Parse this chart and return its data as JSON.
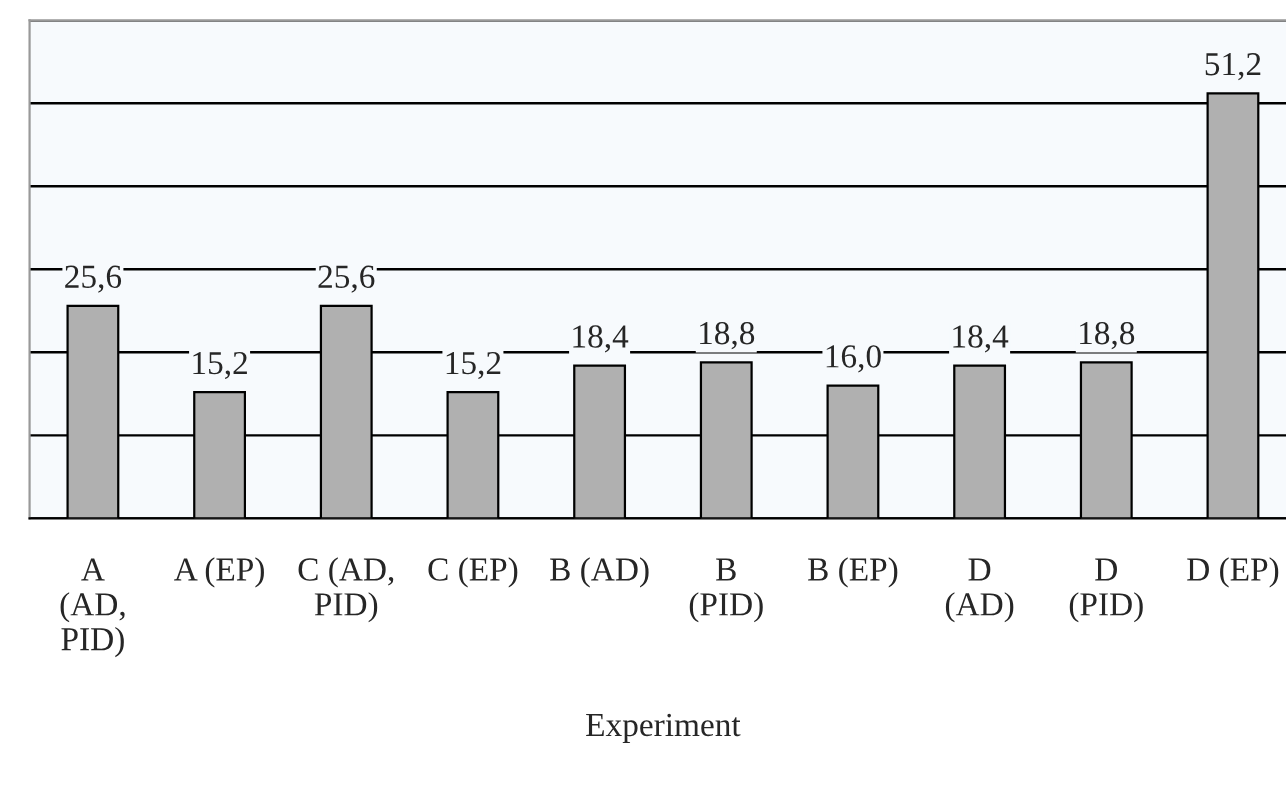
{
  "chart_data": {
    "type": "bar",
    "xlabel": "Experiment",
    "categories": [
      "A\n(AD,\nPID)",
      "A (EP)",
      "C (AD,\nPID)",
      "C (EP)",
      "B (AD)",
      "B\n(PID)",
      "B (EP)",
      "D\n(AD)",
      "D\n(PID)",
      "D (EP)"
    ],
    "values": [
      25.6,
      15.2,
      25.6,
      15.2,
      18.4,
      18.8,
      16.0,
      18.4,
      18.8,
      51.2
    ],
    "value_labels": [
      "25,6",
      "15,2",
      "25,6",
      "15,2",
      "18,4",
      "18,8",
      "16,0",
      "18,4",
      "18,8",
      "51,2"
    ],
    "color": "#b0b0b0",
    "ylim": [
      0,
      60
    ],
    "yticks": [
      {
        "value": 0,
        "label": null
      },
      {
        "value": 10,
        "label": null
      },
      {
        "value": 20,
        "label": null
      },
      {
        "value": 30,
        "label": null
      },
      {
        "value": 40,
        "label": null
      },
      {
        "value": 50,
        "label": null
      },
      {
        "value": 60,
        "label": null
      }
    ],
    "tick_labels": "x",
    "grid": "y"
  }
}
